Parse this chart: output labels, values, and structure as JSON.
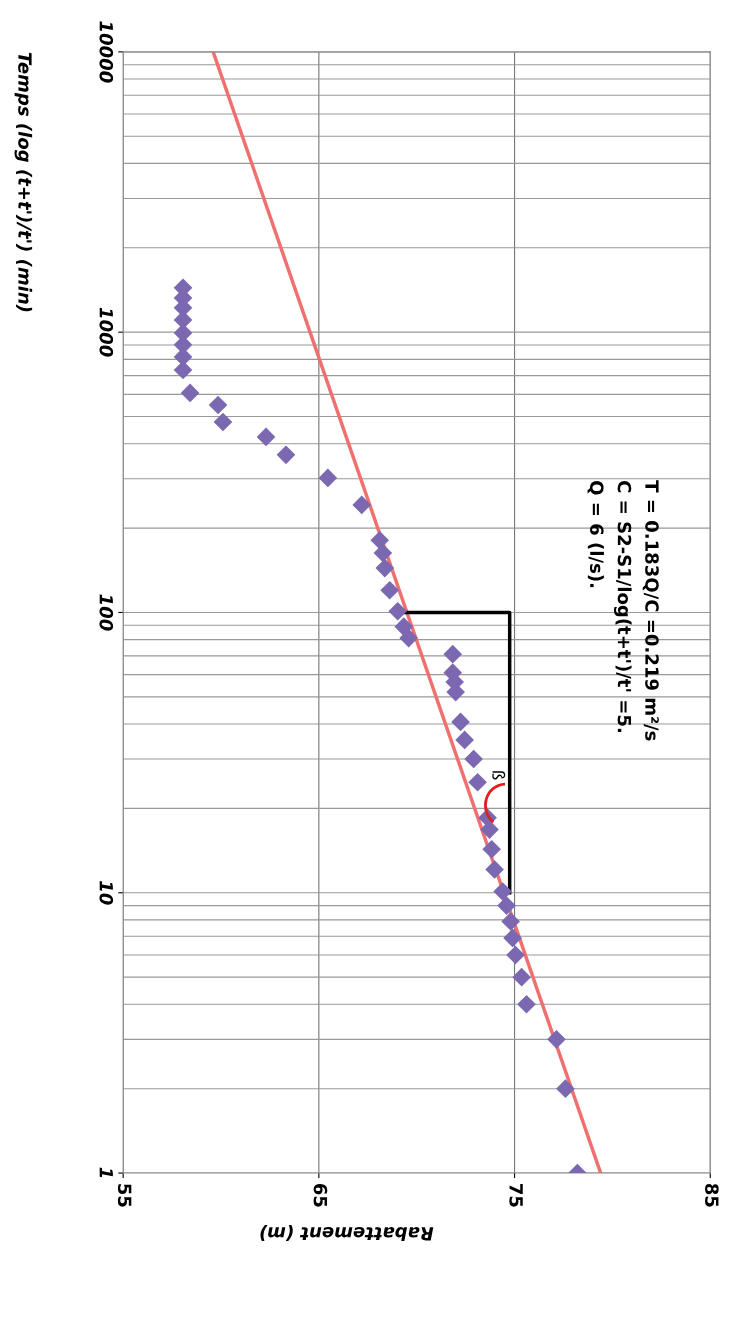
{
  "chart_data": {
    "type": "scatter",
    "xlabel": "Rabattement (m)",
    "ylabel": "Temps (log (t+t')/t') (min)",
    "xlim": [
      55,
      85
    ],
    "xticks": [
      55,
      65,
      75,
      85
    ],
    "ylim": [
      1,
      10000
    ],
    "yticks": [
      1,
      10,
      100,
      1000,
      10000
    ],
    "log": "y",
    "grid": true,
    "series": [
      {
        "marker": "diamond",
        "color": "#7b68b0",
        "x": [
          58.06,
          58.06,
          58.06,
          58.06,
          58.06,
          58.06,
          58.06,
          58.06,
          58.42,
          59.85,
          60.1,
          62.3,
          63.32,
          65.46,
          67.19,
          68.11,
          68.27,
          68.37,
          68.62,
          69.03,
          69.34,
          69.59,
          71.84,
          71.84,
          71.94,
          71.99,
          72.24,
          72.45,
          72.91,
          73.11,
          73.62,
          73.72,
          73.83,
          73.98,
          74.39,
          74.59,
          74.8,
          74.9,
          75.05,
          75.36,
          75.61,
          77.14,
          77.6,
          78.21
        ],
        "values": [
          1439,
          1325,
          1221,
          1106,
          994,
          901,
          816,
          733,
          607,
          550,
          478,
          423,
          365,
          302,
          242,
          181,
          163,
          144,
          120,
          101,
          89,
          81,
          71,
          61,
          56.5,
          52,
          40.7,
          35.1,
          30,
          24.8,
          18.5,
          16.8,
          14.3,
          12.1,
          10.1,
          9,
          7.9,
          6.9,
          6,
          5,
          4,
          3,
          2,
          1
        ]
      },
      {
        "type": "line",
        "color": "#f07070",
        "x": [
          79.4,
          59.6
        ],
        "values": [
          1,
          10000
        ]
      },
      {
        "type": "line",
        "color": "#000000",
        "x": [
          69.4,
          74.75,
          74.75
        ],
        "values": [
          100,
          100,
          10
        ]
      }
    ],
    "annotations": [
      "Q = 6 (l/s).",
      "C = S2-S1/log(t+t')/t' =5.",
      "T = 0.183Q/C =0.219 m²/s",
      "ß"
    ]
  }
}
